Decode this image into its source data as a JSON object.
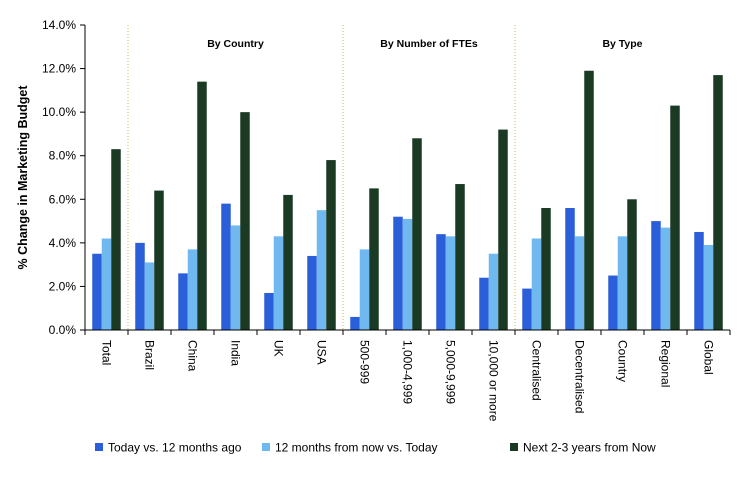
{
  "chart_data": {
    "type": "bar",
    "ylabel": "% Change in Marketing Budget",
    "ylim": [
      0,
      14
    ],
    "ytick_values": [
      0,
      2,
      4,
      6,
      8,
      10,
      12,
      14
    ],
    "ytick_labels": [
      "0.0%",
      "2.0%",
      "4.0%",
      "6.0%",
      "8.0%",
      "10.0%",
      "12.0%",
      "14.0%"
    ],
    "grid": false,
    "legend_position": "bottom",
    "categories": [
      "Total",
      "Brazil",
      "China",
      "India",
      "UK",
      "USA",
      "500-999",
      "1,000-4,999",
      "5,000-9,999",
      "10,000 or more",
      "Centralised",
      "Decentralised",
      "Country",
      "Regional",
      "Global"
    ],
    "groups": [
      {
        "label": "By Country",
        "start": 1,
        "end": 5
      },
      {
        "label": "By Number of FTEs",
        "start": 6,
        "end": 9
      },
      {
        "label": "By Type",
        "start": 10,
        "end": 14
      }
    ],
    "series": [
      {
        "name": "Today vs. 12 months ago",
        "color": "#2b5fd9",
        "values": [
          3.5,
          4.0,
          2.6,
          5.8,
          1.7,
          3.4,
          0.6,
          5.2,
          4.4,
          2.4,
          1.9,
          5.6,
          2.5,
          5.0,
          4.5
        ]
      },
      {
        "name": "12 months from now vs. Today",
        "color": "#6fb8f0",
        "values": [
          4.2,
          3.1,
          3.7,
          4.8,
          4.3,
          5.5,
          3.7,
          5.1,
          4.3,
          3.5,
          4.2,
          4.3,
          4.3,
          4.7,
          3.9
        ]
      },
      {
        "name": "Next 2-3 years from Now",
        "color": "#1a3a24",
        "values": [
          8.3,
          6.4,
          11.4,
          10.0,
          6.2,
          7.8,
          6.5,
          8.8,
          6.7,
          9.2,
          5.6,
          11.9,
          6.0,
          10.3,
          11.7
        ]
      }
    ]
  }
}
